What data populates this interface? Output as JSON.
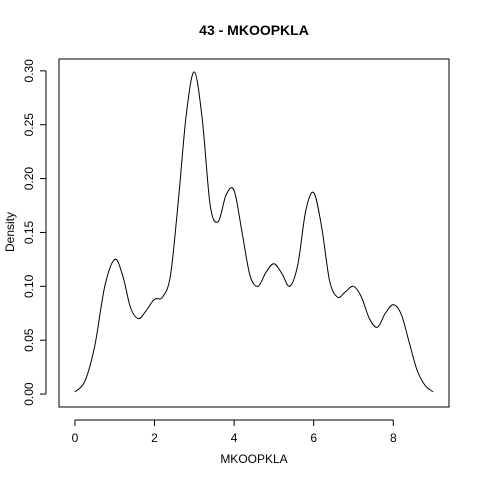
{
  "chart_data": {
    "type": "line",
    "title": "43 - MKOOPKLA",
    "xlabel": "MKOOPKLA",
    "ylabel": "Density",
    "xlim": [
      -0.4,
      9.4
    ],
    "ylim": [
      -0.012,
      0.311
    ],
    "x_ticks": [
      0,
      2,
      4,
      6,
      8
    ],
    "x_tick_labels": [
      "0",
      "2",
      "4",
      "6",
      "8"
    ],
    "y_ticks": [
      0.0,
      0.05,
      0.1,
      0.15,
      0.2,
      0.25,
      0.3
    ],
    "y_tick_labels": [
      "0.00",
      "0.05",
      "0.10",
      "0.15",
      "0.20",
      "0.25",
      "0.30"
    ],
    "grid": false,
    "legend": "none",
    "line_color": "#000000",
    "series": [
      {
        "x": [
          0.0,
          0.25,
          0.5,
          0.75,
          1.0,
          1.2,
          1.4,
          1.6,
          1.8,
          2.0,
          2.2,
          2.4,
          2.6,
          2.8,
          3.0,
          3.2,
          3.4,
          3.6,
          3.8,
          4.0,
          4.2,
          4.4,
          4.6,
          4.8,
          5.0,
          5.2,
          5.4,
          5.6,
          5.8,
          6.0,
          6.2,
          6.4,
          6.6,
          6.8,
          7.0,
          7.2,
          7.4,
          7.6,
          7.8,
          8.0,
          8.2,
          8.4,
          8.6,
          8.8,
          9.0
        ],
        "y": [
          0.002,
          0.012,
          0.045,
          0.1,
          0.125,
          0.11,
          0.08,
          0.07,
          0.078,
          0.088,
          0.09,
          0.11,
          0.18,
          0.26,
          0.299,
          0.255,
          0.175,
          0.16,
          0.185,
          0.189,
          0.15,
          0.11,
          0.1,
          0.113,
          0.121,
          0.112,
          0.1,
          0.12,
          0.17,
          0.187,
          0.155,
          0.105,
          0.09,
          0.095,
          0.1,
          0.09,
          0.07,
          0.062,
          0.075,
          0.083,
          0.074,
          0.048,
          0.022,
          0.008,
          0.002
        ]
      }
    ]
  }
}
